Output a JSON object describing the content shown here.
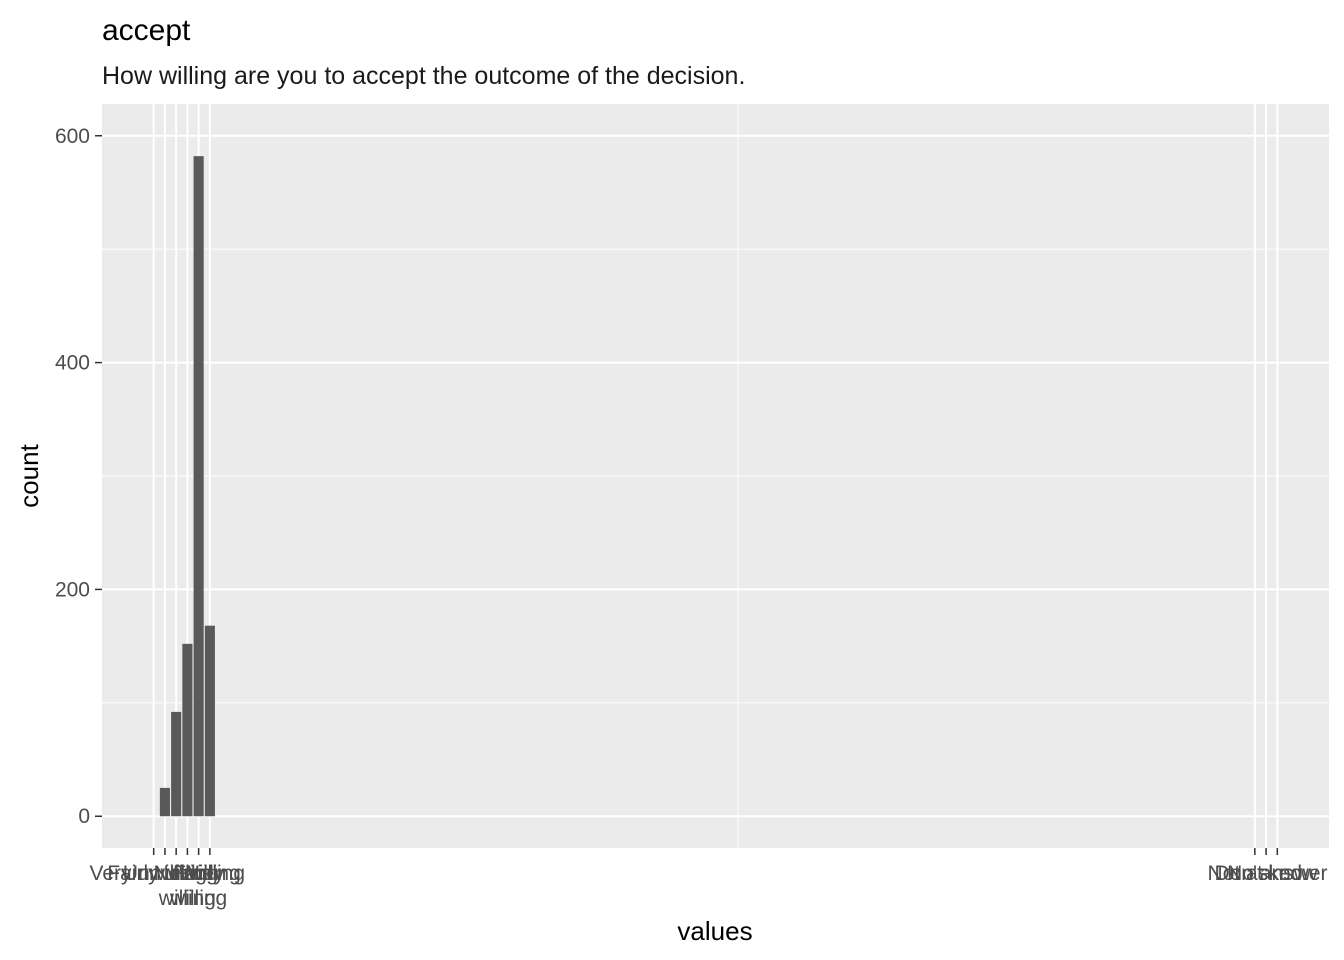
{
  "chart_data": {
    "type": "bar",
    "title": "accept",
    "subtitle": "How willing are you to accept the outcome of the decision.",
    "xlabel": "values",
    "ylabel": "count",
    "ylim": [
      -28,
      628
    ],
    "y_ticks": [
      0,
      200,
      400,
      600
    ],
    "xlim": [
      -9.6,
      99.6
    ],
    "categories": [
      {
        "label": "Very unwilling",
        "lines": [
          "Very unwilling"
        ],
        "x": -5,
        "value": 0
      },
      {
        "label": "Unwilling",
        "lines": [
          "Unwilling"
        ],
        "x": -4,
        "value": 25
      },
      {
        "label": "Fairly unwilling",
        "lines": [
          "Fairly unwilling"
        ],
        "x": -3,
        "value": 92
      },
      {
        "label": "Neither willing nor unwilling",
        "lines": [
          "Neither",
          "willing"
        ],
        "x": -2,
        "value": 152
      },
      {
        "label": "Fairly willing",
        "lines": [
          "Fairly",
          "willing"
        ],
        "x": -1,
        "value": 582
      },
      {
        "label": "Willing",
        "lines": [
          "Willing"
        ],
        "x": 0,
        "value": 168
      },
      {
        "label": "Not asked",
        "lines": [
          "Not asked"
        ],
        "x": 93,
        "value": 0
      },
      {
        "label": "Don't know",
        "lines": [
          "Don't know"
        ],
        "x": 94,
        "value": 0
      },
      {
        "label": "No answer",
        "lines": [
          "No answer"
        ],
        "x": 95,
        "value": 0
      }
    ],
    "x_minor_gridlines": [
      47
    ],
    "bar_color": "#595959",
    "panel_color": "#ebebeb",
    "grid": true
  }
}
